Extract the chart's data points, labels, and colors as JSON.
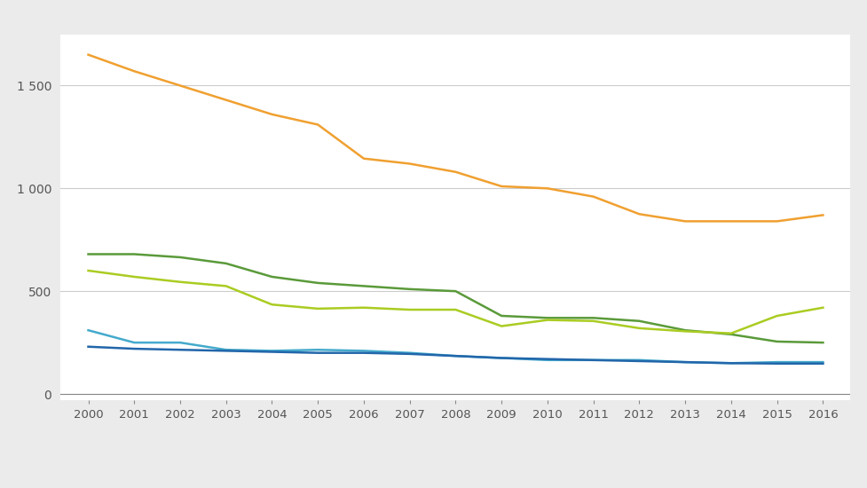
{
  "years": [
    2000,
    2001,
    2002,
    2003,
    2004,
    2005,
    2006,
    2007,
    2008,
    2009,
    2010,
    2011,
    2012,
    2013,
    2014,
    2015,
    2016
  ],
  "orange": [
    1650,
    1570,
    1500,
    1430,
    1360,
    1310,
    1145,
    1120,
    1080,
    1010,
    1000,
    960,
    875,
    840,
    840,
    840,
    870
  ],
  "dark_green": [
    680,
    680,
    665,
    635,
    570,
    540,
    525,
    510,
    500,
    380,
    370,
    370,
    355,
    310,
    290,
    255,
    250
  ],
  "yellow_green": [
    600,
    570,
    545,
    525,
    435,
    415,
    420,
    410,
    410,
    330,
    360,
    355,
    320,
    305,
    295,
    380,
    420
  ],
  "light_blue": [
    310,
    250,
    250,
    215,
    210,
    215,
    210,
    200,
    185,
    175,
    165,
    165,
    165,
    155,
    150,
    155,
    155
  ],
  "dark_blue": [
    230,
    220,
    215,
    210,
    205,
    200,
    200,
    195,
    185,
    175,
    170,
    165,
    160,
    155,
    150,
    148,
    148
  ],
  "orange_color": "#F0A030",
  "dark_green_color": "#5A9A3A",
  "yellow_green_color": "#AACC22",
  "light_blue_color": "#44AACC",
  "dark_blue_color": "#2266AA",
  "fig_bg_color": "#EBEBEB",
  "plot_bg_color": "#FFFFFF",
  "grid_color": "#CCCCCC",
  "tick_color": "#888888",
  "yticks": [
    0,
    500,
    1000,
    1500
  ],
  "ytick_labels": [
    "0",
    "500",
    "1 000",
    "1 500"
  ],
  "ylim": [
    -30,
    1750
  ],
  "xlim": [
    1999.4,
    2016.6
  ],
  "line_width": 1.8
}
